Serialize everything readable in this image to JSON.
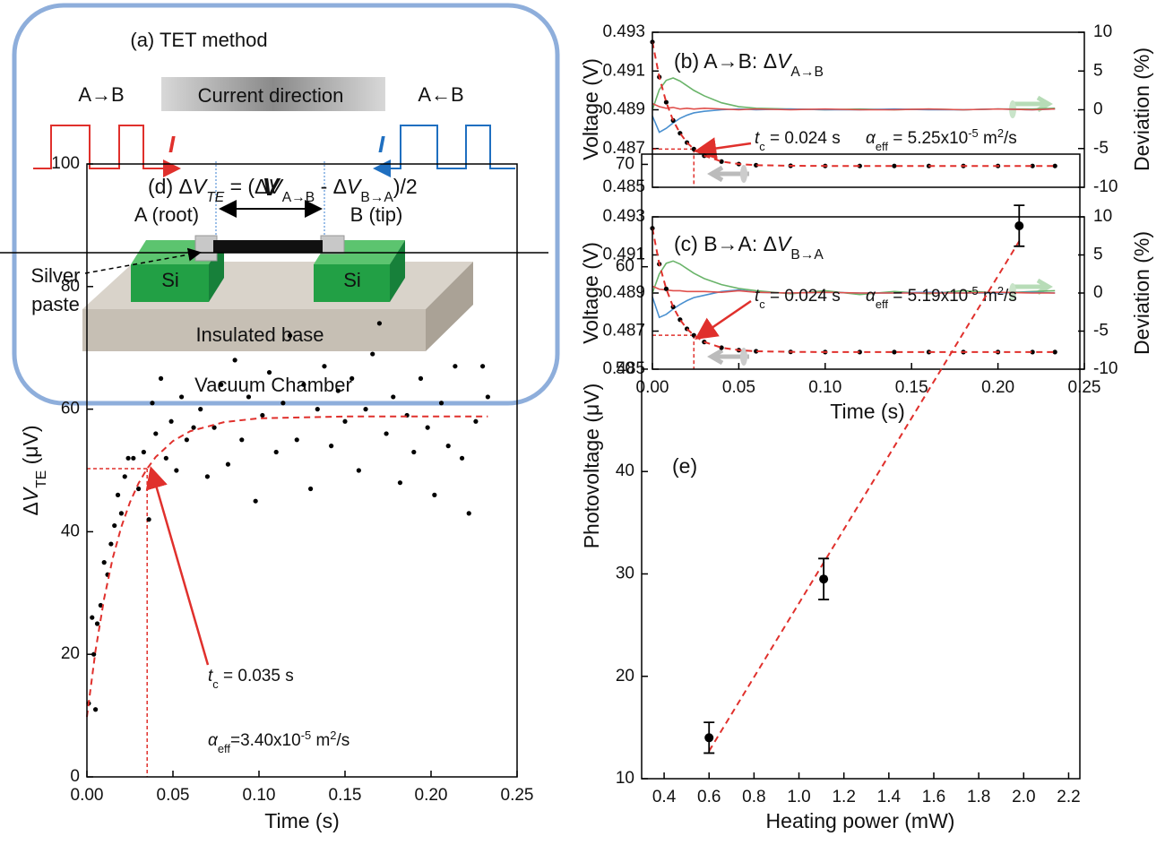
{
  "diagram": {
    "title": "(a) TET method",
    "left_direction": "A→B",
    "current_direction": "Current direction",
    "right_direction": "A←B",
    "current_left": "I",
    "current_right": "I",
    "voltage": "V",
    "end_a": "A (root)",
    "end_b": "B (tip)",
    "si_left": "Si",
    "si_right": "Si",
    "silver_paste": [
      "Silver",
      "paste"
    ],
    "base": "Insulated base",
    "chamber": "Vacuum Chamber"
  },
  "chart_data": [
    {
      "type": "line",
      "title": [
        {
          "text": "(b) A→B: Δ"
        },
        {
          "text": "V",
          "style": "it"
        },
        {
          "text": "A→B",
          "style": "sub"
        }
      ],
      "ylabel": "Voltage (V)",
      "y2label": "Deviation (%)",
      "xlim": [
        0,
        0.25
      ],
      "ylim": [
        0.485,
        0.493
      ],
      "yticks": [
        0.485,
        0.487,
        0.489,
        0.491,
        0.493
      ],
      "y2lim": [
        -10,
        10
      ],
      "y2ticks": [
        -10,
        -5,
        0,
        5,
        10
      ],
      "x": [
        0,
        0.004,
        0.008,
        0.012,
        0.016,
        0.02,
        0.024,
        0.03,
        0.04,
        0.05,
        0.06,
        0.08,
        0.1,
        0.12,
        0.14,
        0.16,
        0.18,
        0.2,
        0.22,
        0.233
      ],
      "series": [
        {
          "color": "#6ab46a",
          "style": "line",
          "axis": "y2",
          "values": [
            0,
            2.6,
            3.8,
            4.1,
            3.7,
            3.1,
            2.5,
            1.8,
            0.9,
            0.4,
            0.2,
            0.1,
            0,
            0.1,
            0,
            0.1,
            0,
            0.1,
            0.1,
            0.2
          ]
        },
        {
          "color": "#4a90d0",
          "style": "line",
          "axis": "y2",
          "values": [
            -0.8,
            -2.9,
            -2.4,
            -1.7,
            -1.1,
            -0.7,
            -0.4,
            -0.2,
            0,
            0.1,
            0,
            0.1,
            0,
            0,
            0.1,
            0,
            0,
            0.1,
            0,
            0.1
          ]
        },
        {
          "color": "#e0504c",
          "style": "line",
          "axis": "y2",
          "values": [
            0.8,
            0.4,
            0.2,
            0.3,
            0.1,
            0.2,
            0.1,
            0.2,
            0.1,
            0,
            0.1,
            0,
            0.1,
            0,
            0,
            0.1,
            0,
            0.1,
            0,
            0.1
          ]
        },
        {
          "color": "#000000",
          "style": "dots",
          "values": [
            0.4925,
            0.49069,
            0.48939,
            0.48845,
            0.48779,
            0.48731,
            0.48697,
            0.48663,
            0.48633,
            0.4862,
            0.48614,
            0.48611,
            0.4861,
            0.4861,
            0.4861,
            0.4861,
            0.4861,
            0.4861,
            0.4861,
            0.4861
          ]
        },
        {
          "color": "#e0302c",
          "style": "dashed",
          "values": [
            0.4925,
            0.49069,
            0.48939,
            0.48845,
            0.48779,
            0.48731,
            0.48697,
            0.48663,
            0.48633,
            0.4862,
            0.48614,
            0.48611,
            0.4861,
            0.4861,
            0.4861,
            0.4861,
            0.4861,
            0.4861,
            0.4861,
            0.4861
          ]
        }
      ],
      "marker": {
        "x": 0.024,
        "y": 0.48697,
        "color": "#e0302c"
      },
      "annotations": [
        [
          {
            "text": "t",
            "style": "it"
          },
          {
            "text": "c",
            "style": "sub"
          },
          {
            "text": " = 0.024 s"
          }
        ],
        [
          {
            "text": "α",
            "style": "it"
          },
          {
            "text": "eff",
            "style": "sub"
          },
          {
            "text": " = 5.25x10"
          },
          {
            "text": "-5",
            "style": "sup"
          },
          {
            "text": " m"
          },
          {
            "text": "2",
            "style": "sup"
          },
          {
            "text": "/s"
          }
        ]
      ]
    },
    {
      "type": "line",
      "title": [
        {
          "text": "(c) B→A: Δ"
        },
        {
          "text": "V",
          "style": "it"
        },
        {
          "text": "B→A",
          "style": "sub"
        }
      ],
      "ylabel": "Voltage (V)",
      "y2label": "Deviation (%)",
      "xlabel": "Time (s)",
      "xlim": [
        0,
        0.25
      ],
      "xticks": [
        {
          "value": 0,
          "label": "0.00"
        },
        {
          "value": 0.05,
          "label": "0.05"
        },
        {
          "value": 0.1,
          "label": "0.10"
        },
        {
          "value": 0.15,
          "label": "0.15"
        },
        {
          "value": 0.2,
          "label": "0.20"
        },
        {
          "value": 0.25,
          "label": "0.25"
        }
      ],
      "ylim": [
        0.485,
        0.493
      ],
      "yticks": [
        0.485,
        0.487,
        0.489,
        0.491,
        0.493
      ],
      "y2lim": [
        -10,
        10
      ],
      "y2ticks": [
        -10,
        -5,
        0,
        5,
        10
      ],
      "x": [
        0,
        0.004,
        0.008,
        0.012,
        0.016,
        0.02,
        0.024,
        0.03,
        0.04,
        0.05,
        0.06,
        0.08,
        0.1,
        0.12,
        0.14,
        0.16,
        0.18,
        0.2,
        0.22,
        0.233
      ],
      "series": [
        {
          "color": "#6ab46a",
          "style": "line",
          "axis": "y2",
          "values": [
            0,
            2.5,
            3.9,
            4.2,
            3.8,
            3.2,
            2.6,
            1.9,
            1.1,
            0.6,
            0.3,
            -0.1,
            0.3,
            -0.2,
            0.2,
            -0.1,
            0.3,
            0,
            0.2,
            0.3
          ]
        },
        {
          "color": "#4a90d0",
          "style": "line",
          "axis": "y2",
          "values": [
            -0.5,
            -3.2,
            -2.8,
            -2.1,
            -1.5,
            -1,
            -0.6,
            -0.3,
            0.2,
            0.4,
            0.1,
            0,
            0.1,
            0,
            0,
            0.1,
            0,
            0,
            0.1,
            0
          ]
        },
        {
          "color": "#e0504c",
          "style": "line",
          "axis": "y2",
          "values": [
            0.9,
            0.5,
            0.4,
            0.3,
            0.3,
            0.2,
            0.2,
            0.2,
            0.1,
            0.3,
            0.1,
            0,
            0.1,
            0,
            0,
            0,
            0,
            0.1,
            0,
            0
          ]
        },
        {
          "color": "#000000",
          "style": "dots",
          "values": [
            0.4924,
            0.49052,
            0.48922,
            0.48827,
            0.4876,
            0.48712,
            0.48678,
            0.48643,
            0.48613,
            0.486,
            0.48594,
            0.48591,
            0.4859,
            0.4859,
            0.4859,
            0.4859,
            0.4859,
            0.4859,
            0.4859,
            0.4859
          ]
        },
        {
          "color": "#e0302c",
          "style": "dashed",
          "values": [
            0.4924,
            0.49052,
            0.48922,
            0.48827,
            0.4876,
            0.48712,
            0.48678,
            0.48643,
            0.48613,
            0.486,
            0.48594,
            0.48591,
            0.4859,
            0.4859,
            0.4859,
            0.4859,
            0.4859,
            0.4859,
            0.4859,
            0.4859
          ]
        }
      ],
      "marker": {
        "x": 0.024,
        "y": 0.48678,
        "color": "#e0302c"
      },
      "annotations": [
        [
          {
            "text": "t",
            "style": "it"
          },
          {
            "text": "c",
            "style": "sub"
          },
          {
            "text": " = 0.024 s"
          }
        ],
        [
          {
            "text": "α",
            "style": "it"
          },
          {
            "text": "eff",
            "style": "sub"
          },
          {
            "text": " = 5.19x10"
          },
          {
            "text": "-5",
            "style": "sup"
          },
          {
            "text": " m"
          },
          {
            "text": "2",
            "style": "sup"
          },
          {
            "text": "/s"
          }
        ]
      ]
    },
    {
      "type": "scatter",
      "title": [
        {
          "text": "(d) Δ"
        },
        {
          "text": "V",
          "style": "it"
        },
        {
          "text": "TE",
          "style": "itsub"
        },
        {
          "text": " = (Δ"
        },
        {
          "text": "V",
          "style": "it"
        },
        {
          "text": "A→B",
          "style": "sub"
        },
        {
          "text": " - Δ"
        },
        {
          "text": "V",
          "style": "it"
        },
        {
          "text": "B→A",
          "style": "sub"
        },
        {
          "text": ")/2"
        }
      ],
      "ylabel": [
        {
          "text": "Δ"
        },
        {
          "text": "V",
          "style": "it"
        },
        {
          "text": "TE",
          "style": "sub"
        },
        {
          "text": " (μV)"
        }
      ],
      "xlabel": "Time (s)",
      "xlim": [
        0,
        0.25
      ],
      "xticks": [
        {
          "value": 0,
          "label": "0.00"
        },
        {
          "value": 0.05,
          "label": "0.05"
        },
        {
          "value": 0.1,
          "label": "0.10"
        },
        {
          "value": 0.15,
          "label": "0.15"
        },
        {
          "value": 0.2,
          "label": "0.20"
        },
        {
          "value": 0.25,
          "label": "0.25"
        }
      ],
      "ylim": [
        0,
        100
      ],
      "yticks": [
        0,
        20,
        40,
        60,
        80,
        100
      ],
      "series": [
        {
          "color": "#000000",
          "style": "dots",
          "x": [
            0.001,
            0.003,
            0.004,
            0.005,
            0.006,
            0.008,
            0.01,
            0.012,
            0.014,
            0.016,
            0.018,
            0.02,
            0.022,
            0.024,
            0.027,
            0.03,
            0.033,
            0.036,
            0.038,
            0.04,
            0.043,
            0.046,
            0.049,
            0.052,
            0.055,
            0.058,
            0.062,
            0.066,
            0.07,
            0.074,
            0.078,
            0.082,
            0.086,
            0.09,
            0.094,
            0.098,
            0.102,
            0.106,
            0.11,
            0.114,
            0.118,
            0.122,
            0.126,
            0.13,
            0.134,
            0.138,
            0.142,
            0.146,
            0.15,
            0.154,
            0.158,
            0.162,
            0.166,
            0.17,
            0.174,
            0.178,
            0.182,
            0.186,
            0.19,
            0.194,
            0.198,
            0.202,
            0.206,
            0.21,
            0.214,
            0.218,
            0.222,
            0.226,
            0.23,
            0.233
          ],
          "values": [
            12,
            26,
            20,
            11,
            25,
            28,
            35,
            33,
            38,
            41,
            46,
            43,
            49,
            52,
            52,
            47,
            53,
            42,
            61,
            56,
            65,
            52,
            58,
            50,
            62,
            55,
            57,
            60,
            49,
            57,
            64,
            51,
            68,
            55,
            62,
            45,
            59,
            66,
            53,
            61,
            72,
            55,
            64,
            47,
            60,
            67,
            54,
            63,
            58,
            65,
            50,
            60,
            69,
            74,
            56,
            62,
            48,
            59,
            53,
            65,
            57,
            46,
            61,
            54,
            67,
            52,
            43,
            58,
            67,
            62
          ]
        },
        {
          "color": "#e0302c",
          "style": "dashed",
          "x": [
            0,
            0.005,
            0.01,
            0.015,
            0.02,
            0.025,
            0.03,
            0.035,
            0.04,
            0.05,
            0.06,
            0.08,
            0.1,
            0.15,
            0.2,
            0.233
          ],
          "values": [
            9.8,
            20.6,
            29.1,
            35.7,
            40.8,
            44.8,
            47.9,
            50.3,
            52.2,
            54.8,
            56.4,
            57.9,
            58.5,
            58.8,
            58.8,
            58.8
          ]
        }
      ],
      "marker": {
        "x": 0.035,
        "y": 50.3,
        "color": "#e0302c"
      },
      "annotations": [
        [
          {
            "text": "t",
            "style": "it"
          },
          {
            "text": "c",
            "style": "sub"
          },
          {
            "text": " = 0.035 s"
          }
        ],
        [
          {
            "text": "α",
            "style": "it"
          },
          {
            "text": "eff",
            "style": "sub"
          },
          {
            "text": "=3.40x10"
          },
          {
            "text": "-5",
            "style": "sup"
          },
          {
            "text": " m"
          },
          {
            "text": "2",
            "style": "sup"
          },
          {
            "text": "/s"
          }
        ]
      ]
    },
    {
      "type": "scatter",
      "title": [
        {
          "text": "(e)"
        }
      ],
      "ylabel": "Photovoltage (μV)",
      "xlabel": "Heating power (mW)",
      "xlim": [
        0.3,
        2.25
      ],
      "xticks": [
        0.4,
        0.6,
        0.8,
        {
          "value": 1,
          "label": "1.0"
        },
        1.2,
        1.4,
        1.6,
        1.8,
        {
          "value": 2,
          "label": "2.0"
        },
        2.2
      ],
      "ylim": [
        10,
        71
      ],
      "yticks": [
        10,
        20,
        30,
        40,
        50,
        60,
        70
      ],
      "series": [
        {
          "color": "#e0302c",
          "style": "dashed",
          "x": [
            0.6,
            1.98
          ],
          "values": [
            12.7,
            62.5
          ]
        },
        {
          "color": "#000000",
          "style": "dots",
          "size": 5,
          "x": [
            0.6,
            1.11,
            1.98
          ],
          "values": [
            14,
            29.5,
            64
          ],
          "errors": [
            1.5,
            2,
            2
          ]
        }
      ]
    }
  ]
}
